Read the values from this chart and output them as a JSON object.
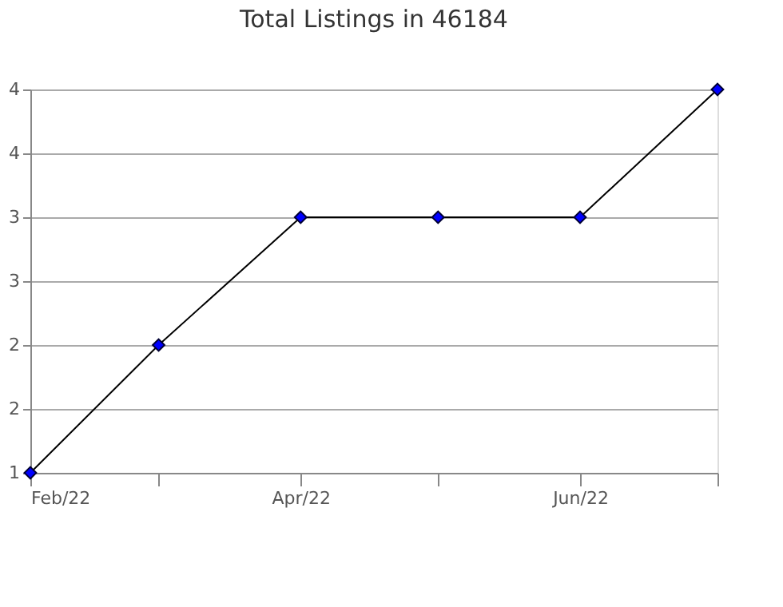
{
  "chart_data": {
    "type": "line",
    "title": "Total Listings in 46184",
    "x": [
      "2022-02",
      "2022-03",
      "2022-04",
      "2022-05",
      "2022-06",
      "2022-07"
    ],
    "series": [
      {
        "color": "#0000ff",
        "values": [
          1,
          2,
          3,
          3,
          3,
          4
        ]
      }
    ],
    "xlim": [
      "2022-02",
      "2022-07"
    ],
    "xticks": [
      {
        "value": "2022-02",
        "label": "Feb/22"
      },
      {
        "value": "2022-03",
        "label": null
      },
      {
        "value": "2022-04",
        "label": "Apr/22"
      },
      {
        "value": "2022-05",
        "label": null
      },
      {
        "value": "2022-06",
        "label": "Jun/22"
      },
      {
        "value": "2022-07",
        "label": null
      }
    ],
    "ylim": [
      1,
      4
    ],
    "yticks": [
      {
        "value": 1,
        "label": "1"
      },
      {
        "value": 1.5,
        "label": "2"
      },
      {
        "value": 2,
        "label": "2"
      },
      {
        "value": 2.5,
        "label": "3"
      },
      {
        "value": 3,
        "label": "3"
      },
      {
        "value": 3.5,
        "label": "4"
      },
      {
        "value": 4,
        "label": "4"
      }
    ],
    "grid": "y",
    "marker": "diamond",
    "line_style": "solid",
    "legend": false
  }
}
